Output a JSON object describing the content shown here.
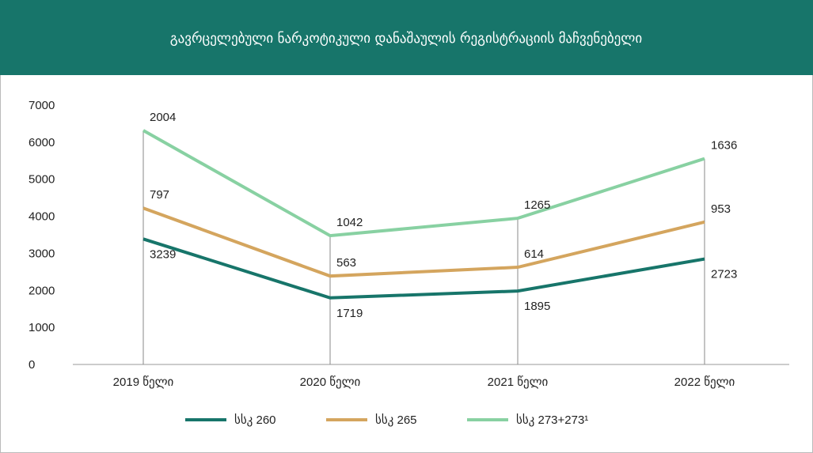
{
  "chart_data": {
    "type": "line",
    "stacked": true,
    "title": "გავრცელებული ნარკოტიკული დანაშაულის რეგისტრაციის მაჩვენებელი",
    "categories": [
      "2019 წელი",
      "2020 წელი",
      "2021 წელი",
      "2022 წელი"
    ],
    "series": [
      {
        "name": "სსკ 260",
        "color": "#17756a",
        "values": [
          3239,
          1719,
          1895,
          2723
        ]
      },
      {
        "name": "სსკ 265",
        "color": "#d4a55e",
        "values": [
          797,
          563,
          614,
          953
        ]
      },
      {
        "name": "სსკ 273+273¹",
        "color": "#88d1a2",
        "values": [
          2004,
          1042,
          1265,
          1636
        ]
      }
    ],
    "ylim": [
      0,
      7000
    ],
    "yticks": [
      0,
      1000,
      2000,
      3000,
      4000,
      5000,
      6000,
      7000
    ],
    "legend": "bottom"
  }
}
